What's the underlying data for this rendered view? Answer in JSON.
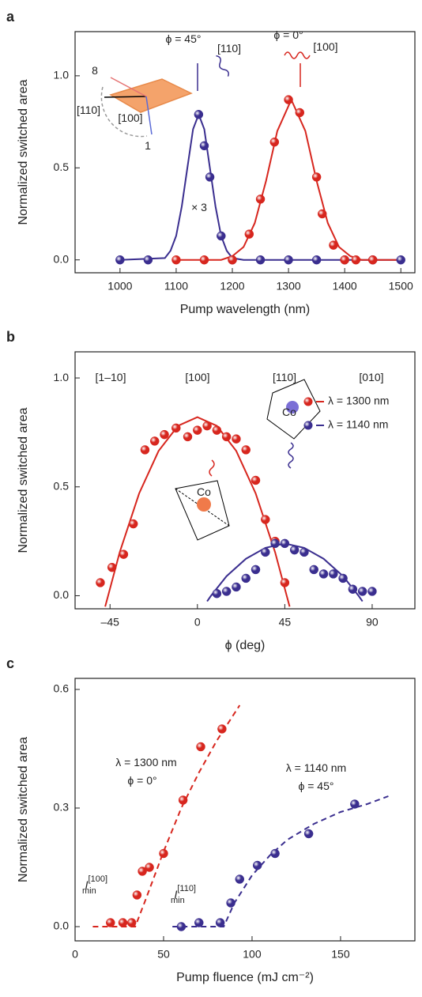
{
  "chart_data": [
    {
      "type": "scatter",
      "panel_label": "a",
      "ylabel": "Normalized switched area",
      "xlabel": "Pump wavelength (nm)",
      "xlim": [
        920,
        1525
      ],
      "ylim": [
        -0.07,
        1.24
      ],
      "xticks": [
        1000,
        1100,
        1200,
        1300,
        1400,
        1500
      ],
      "yticks": [
        {
          "value": 0,
          "label": "0.0"
        },
        {
          "value": 0.5,
          "label": "0.5"
        },
        {
          "value": 1,
          "label": "1.0"
        }
      ],
      "series": [
        {
          "color": "#3a2e8f",
          "mode": "line",
          "x": [
            1000,
            1080,
            1090,
            1100,
            1110,
            1120,
            1130,
            1140,
            1150,
            1160,
            1170,
            1180,
            1190,
            1200,
            1220,
            1500
          ],
          "values": [
            0,
            0.01,
            0.05,
            0.13,
            0.29,
            0.5,
            0.71,
            0.79,
            0.71,
            0.5,
            0.29,
            0.13,
            0.05,
            0.01,
            0,
            0
          ]
        },
        {
          "color": "#d7261e",
          "mode": "line",
          "x": [
            1100,
            1180,
            1200,
            1220,
            1240,
            1260,
            1280,
            1305,
            1330,
            1350,
            1370,
            1390,
            1410,
            1430,
            1500
          ],
          "values": [
            0,
            0,
            0.02,
            0.07,
            0.2,
            0.43,
            0.7,
            0.87,
            0.7,
            0.43,
            0.2,
            0.07,
            0.02,
            0,
            0
          ]
        },
        {
          "color": "#3a2e8f",
          "mode": "markers",
          "x": [
            1000,
            1050,
            1140,
            1150,
            1160,
            1180,
            1200,
            1250,
            1300,
            1350,
            1400,
            1450,
            1500
          ],
          "values": [
            0,
            0,
            0.79,
            0.62,
            0.45,
            0.13,
            0,
            0,
            0,
            0,
            0,
            0,
            0
          ]
        },
        {
          "color": "#d7261e",
          "mode": "markers",
          "x": [
            1100,
            1150,
            1200,
            1230,
            1250,
            1275,
            1300,
            1320,
            1350,
            1360,
            1380,
            1400,
            1420,
            1450
          ],
          "values": [
            0,
            0,
            0,
            0.14,
            0.33,
            0.64,
            0.87,
            0.8,
            0.45,
            0.25,
            0.08,
            0,
            0,
            0
          ]
        }
      ],
      "annotations": [
        {
          "text": "ϕ = 45°"
        },
        {
          "text": "[110]"
        },
        {
          "text": "ϕ = 0°"
        },
        {
          "text": "[100]"
        },
        {
          "text": "× 3"
        },
        {
          "text": "8"
        },
        {
          "text": "1"
        },
        {
          "text": "[110]"
        },
        {
          "text": "[100]"
        }
      ]
    },
    {
      "type": "scatter",
      "panel_label": "b",
      "ylabel": "Normalized switched area",
      "xlabel": "ϕ (deg)",
      "xlim": [
        -63,
        112
      ],
      "ylim": [
        -0.06,
        1.12
      ],
      "xticks": [
        {
          "value": -45,
          "label": "–45"
        },
        0,
        45,
        90
      ],
      "yticks": [
        {
          "value": 0,
          "label": "0.0"
        },
        {
          "value": 0.5,
          "label": "0.5"
        },
        {
          "value": 1,
          "label": "1.0"
        }
      ],
      "series": [
        {
          "color": "#d7261e",
          "mode": "line",
          "x": [
            -47.5,
            -46,
            -40,
            -30,
            -20,
            -10,
            0,
            10,
            20,
            30,
            40,
            46,
            47.5
          ],
          "values": [
            -0.05,
            0,
            0.2,
            0.47,
            0.665,
            0.78,
            0.82,
            0.78,
            0.665,
            0.47,
            0.2,
            0,
            -0.05
          ]
        },
        {
          "color": "#3a2e8f",
          "mode": "line",
          "x": [
            5,
            7,
            15,
            25,
            35,
            45,
            55,
            65,
            75,
            83,
            85
          ],
          "values": [
            -0.026,
            0,
            0.09,
            0.17,
            0.22,
            0.24,
            0.22,
            0.17,
            0.09,
            0,
            -0.026
          ]
        },
        {
          "name": "λ = 1300 nm",
          "color": "#d7261e",
          "mode": "markers",
          "x": [
            -50,
            -44,
            -38,
            -33,
            -27,
            -22,
            -17,
            -11,
            -5,
            0,
            5,
            10,
            15,
            20,
            25,
            30,
            35,
            40,
            45
          ],
          "values": [
            0.06,
            0.13,
            0.19,
            0.33,
            0.67,
            0.71,
            0.74,
            0.77,
            0.73,
            0.76,
            0.78,
            0.76,
            0.73,
            0.72,
            0.67,
            0.53,
            0.35,
            0.25,
            0.06
          ]
        },
        {
          "name": "λ = 1140 nm",
          "color": "#3a2e8f",
          "mode": "markers",
          "x": [
            10,
            15,
            20,
            25,
            30,
            35,
            40,
            45,
            50,
            55,
            60,
            65,
            70,
            75,
            80,
            85,
            90
          ],
          "values": [
            0.01,
            0.02,
            0.04,
            0.08,
            0.12,
            0.2,
            0.24,
            0.24,
            0.21,
            0.2,
            0.12,
            0.1,
            0.1,
            0.08,
            0.03,
            0.02,
            0.02
          ]
        }
      ],
      "annotations": [
        {
          "text": "[1–10]"
        },
        {
          "text": "[100]"
        },
        {
          "text": "[110]"
        },
        {
          "text": "[010]"
        },
        {
          "text": "Co"
        },
        {
          "text": "Co"
        }
      ]
    },
    {
      "type": "scatter",
      "panel_label": "c",
      "ylabel": "Normalized switched area",
      "xlabel": "Pump fluence (mJ cm⁻²)",
      "xlim": [
        0,
        192
      ],
      "ylim": [
        -0.036,
        0.628
      ],
      "xticks": [
        0,
        50,
        100,
        150
      ],
      "yticks": [
        {
          "value": 0,
          "label": "0.0"
        },
        {
          "value": 0.3,
          "label": "0.3"
        },
        {
          "value": 0.6,
          "label": "0.6"
        }
      ],
      "series": [
        {
          "color": "#d7261e",
          "mode": "line",
          "dash": true,
          "x": [
            10,
            20,
            30,
            34,
            40,
            50,
            60,
            70,
            80,
            93
          ],
          "values": [
            0,
            0,
            0,
            0,
            0.07,
            0.19,
            0.3,
            0.39,
            0.47,
            0.56
          ]
        },
        {
          "color": "#3a2e8f",
          "mode": "line",
          "dash": true,
          "x": [
            55,
            70,
            84,
            90,
            100,
            110,
            120,
            135,
            150,
            165,
            177
          ],
          "values": [
            0,
            0,
            0,
            0.06,
            0.13,
            0.18,
            0.22,
            0.26,
            0.29,
            0.31,
            0.33
          ]
        },
        {
          "color": "#d7261e",
          "mode": "markers",
          "x": [
            20,
            27,
            32,
            35,
            38,
            42,
            50,
            61,
            71,
            83
          ],
          "values": [
            0.01,
            0.01,
            0.01,
            0.08,
            0.14,
            0.15,
            0.185,
            0.32,
            0.455,
            0.5
          ]
        },
        {
          "color": "#3a2e8f",
          "mode": "markers",
          "x": [
            60,
            70,
            82,
            88,
            93,
            103,
            113,
            132,
            158
          ],
          "values": [
            0,
            0.01,
            0.01,
            0.06,
            0.12,
            0.155,
            0.185,
            0.235,
            0.31
          ]
        }
      ],
      "annotations": [
        {
          "text": "λ = 1300 nm"
        },
        {
          "text": "ϕ = 0°"
        },
        {
          "text": "λ = 1140 nm"
        },
        {
          "text": "ϕ = 45°"
        },
        {
          "text": "I",
          "sub": "min",
          "sup": "[100]"
        },
        {
          "text": "I",
          "sub": "min",
          "sup": "[110]"
        }
      ]
    }
  ]
}
